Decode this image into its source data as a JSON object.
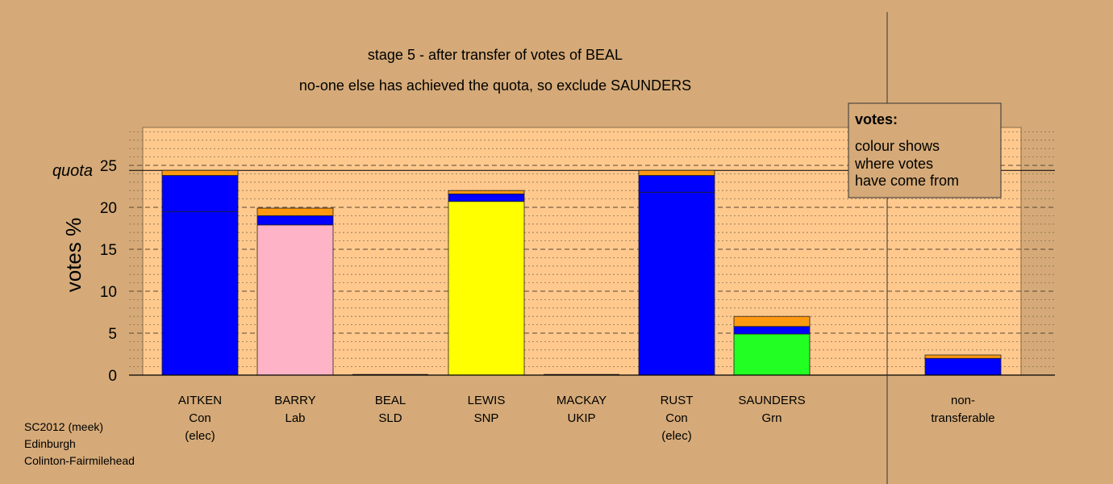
{
  "chart_data": {
    "type": "bar",
    "stacked": true,
    "title": "stage 5 - after transfer of votes of BEAL",
    "subtitle": "no-one else has achieved the quota, so exclude SAUNDERS",
    "ylabel": "votes %",
    "ylim": [
      0,
      29.5
    ],
    "yticks": [
      0,
      5,
      10,
      15,
      20,
      25
    ],
    "quota": 24.4,
    "quota_label": "quota",
    "grid": "dashed major every 5, dotted minor every 1",
    "candidates": [
      {
        "name": "AITKEN",
        "party": "Con",
        "status": "(elec)",
        "segments": [
          {
            "color": "#0000ff",
            "value": 19.5
          },
          {
            "color": "#0000ff",
            "value": 4.3
          },
          {
            "color": "#ff9910",
            "value": 0.6
          }
        ]
      },
      {
        "name": "BARRY",
        "party": "Lab",
        "status": "",
        "segments": [
          {
            "color": "#ffb3c6",
            "value": 17.9
          },
          {
            "color": "#0000ff",
            "value": 1.1
          },
          {
            "color": "#ff9910",
            "value": 0.9
          }
        ]
      },
      {
        "name": "BEAL",
        "party": "SLD",
        "status": "",
        "segments": [
          {
            "color": "#0000ff",
            "value": 0.0
          }
        ]
      },
      {
        "name": "LEWIS",
        "party": "SNP",
        "status": "",
        "segments": [
          {
            "color": "#ffff00",
            "value": 20.7
          },
          {
            "color": "#0000ff",
            "value": 0.9
          },
          {
            "color": "#ff9910",
            "value": 0.4
          }
        ]
      },
      {
        "name": "MACKAY",
        "party": "UKIP",
        "status": "",
        "segments": [
          {
            "color": "#0000ff",
            "value": 0.0
          }
        ]
      },
      {
        "name": "RUST",
        "party": "Con",
        "status": "(elec)",
        "segments": [
          {
            "color": "#0000ff",
            "value": 21.8
          },
          {
            "color": "#0000ff",
            "value": 2.0
          },
          {
            "color": "#ff9910",
            "value": 0.6
          }
        ]
      },
      {
        "name": "SAUNDERS",
        "party": "Grn",
        "status": "",
        "segments": [
          {
            "color": "#22ff22",
            "value": 4.9
          },
          {
            "color": "#0000ff",
            "value": 0.9
          },
          {
            "color": "#ff9910",
            "value": 1.2
          }
        ]
      },
      {
        "name": "non-",
        "party": "transferable",
        "status": "",
        "segments": [
          {
            "color": "#0000ff",
            "value": 2.0
          },
          {
            "color": "#ff9910",
            "value": 0.4
          }
        ]
      }
    ],
    "legend": {
      "position": "top-right",
      "title": "votes:",
      "lines": [
        "colour shows",
        "where votes",
        "have come from"
      ]
    }
  },
  "footer": {
    "lines": [
      "SC2012 (meek)",
      "Edinburgh",
      "Colinton-Fairmilehead"
    ]
  },
  "colors": {
    "background": "#d5aa78",
    "plot_area": "#ffc98e"
  }
}
